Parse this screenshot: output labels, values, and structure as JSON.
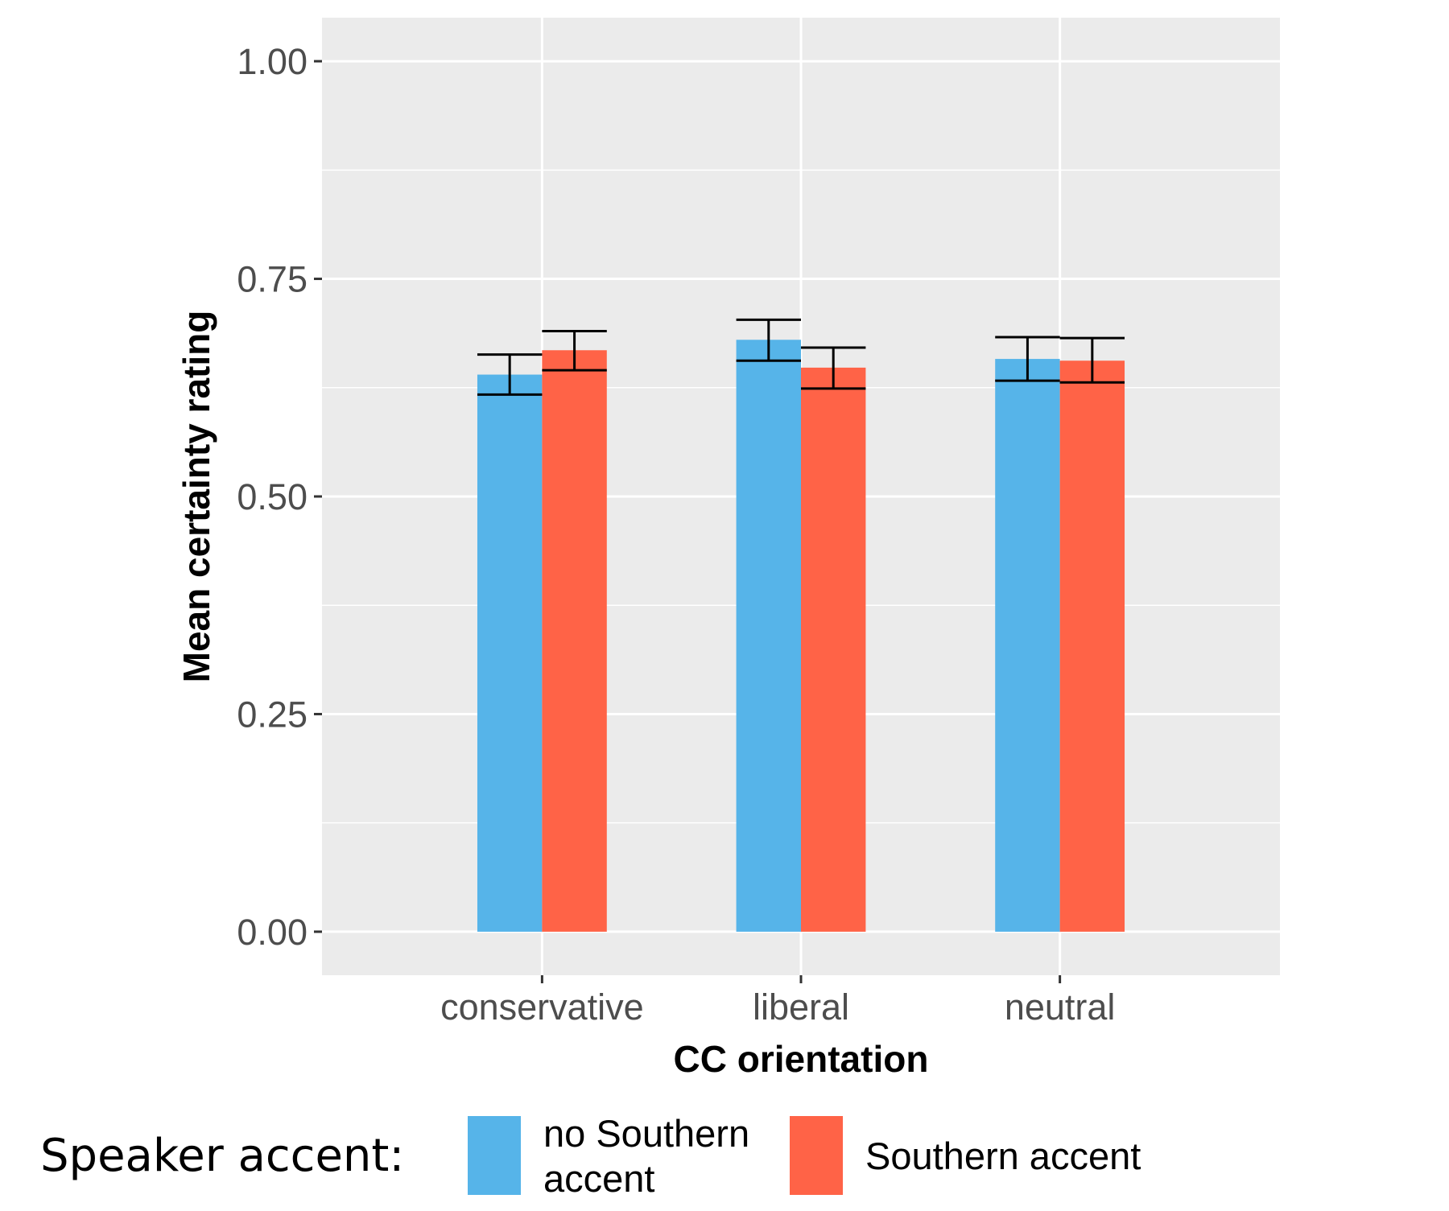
{
  "chart_data": {
    "type": "bar",
    "xlabel": "CC orientation",
    "ylabel": "Mean certainty rating",
    "categories": [
      "conservative",
      "liberal",
      "neutral"
    ],
    "ylim": [
      -0.05,
      1.05
    ],
    "yticks": [
      "0.00",
      "0.25",
      "0.50",
      "0.75",
      "1.00"
    ],
    "grid": true,
    "legend_position": "bottom",
    "legend_title": "Speaker accent:",
    "series": [
      {
        "name": "no Southern accent",
        "legend_lines": [
          "no Southern",
          "accent"
        ],
        "color": "#56B4E9",
        "values": [
          0.64,
          0.68,
          0.658
        ],
        "error_low": [
          0.617,
          0.656,
          0.633
        ],
        "error_high": [
          0.663,
          0.703,
          0.683
        ]
      },
      {
        "name": "Southern accent",
        "legend_lines": [
          "Southern accent"
        ],
        "color": "#FF6347",
        "values": [
          0.668,
          0.648,
          0.656
        ],
        "error_low": [
          0.645,
          0.624,
          0.631
        ],
        "error_high": [
          0.69,
          0.671,
          0.682
        ]
      }
    ]
  }
}
